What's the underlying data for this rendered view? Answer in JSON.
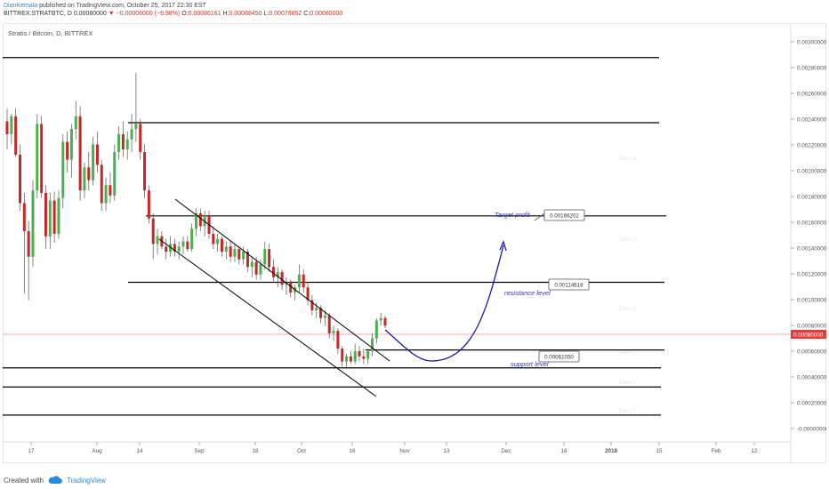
{
  "header": {
    "author": "DianKemala",
    "published": "published on TradingView.com, October 25, 2017 22:30 EST",
    "symbol_line": "BITTREX:STRATBTC, D 0.00080000",
    "change": "▼ −0.00006000 (−6.98%)",
    "o_label": "O:",
    "o_value": "0.00086161",
    "h_label": "H:",
    "h_value": "0.00088450",
    "l_label": "L:",
    "l_value": "0.00078852",
    "c_label": "C:",
    "c_value": "0.00080000"
  },
  "chart_title": "Stratis / Bitcoin, D, BITTREX",
  "footer": {
    "created_with": "Created with",
    "brand": "TradingView"
  },
  "colors": {
    "bull": "#4caf50",
    "bear": "#c62828",
    "wick": "#555555",
    "price_line": "#f28b8b",
    "price_tag": "#e23c3c",
    "projection": "#1a1aa8",
    "annotation_text": "#3333cc",
    "level_line": "#000000",
    "grid": "#eeeeee",
    "zone_label": "#e0e4ea"
  },
  "chart_data": {
    "type": "candlestick",
    "y_ticks": [
      "0.00300000",
      "0.00280000",
      "0.00260000",
      "0.00240000",
      "0.00220000",
      "0.00200000",
      "0.00180000",
      "0.00160000",
      "0.00140000",
      "0.00120000",
      "0.00100000",
      "0.00080000",
      "0.00060000",
      "0.00040000",
      "0.00020000",
      "-0.00000000"
    ],
    "x_ticks": [
      "17",
      "Aug",
      "14",
      "Sep",
      "18",
      "Oct",
      "16",
      "Nov",
      "13",
      "Dec",
      "18",
      "2018",
      "15",
      "Feb",
      "12"
    ],
    "ylim": [
      -0.00011,
      0.00317
    ],
    "last_price": "0.00080000",
    "candles": [
      {
        "o": 0.0024,
        "h": 0.0025,
        "l": 0.00218,
        "c": 0.0023
      },
      {
        "o": 0.0023,
        "h": 0.00246,
        "l": 0.00222,
        "c": 0.00244
      },
      {
        "o": 0.00244,
        "h": 0.0025,
        "l": 0.00212,
        "c": 0.00214
      },
      {
        "o": 0.00214,
        "h": 0.00222,
        "l": 0.0017,
        "c": 0.00176
      },
      {
        "o": 0.00176,
        "h": 0.00184,
        "l": 0.00105,
        "c": 0.00154
      },
      {
        "o": 0.00154,
        "h": 0.00162,
        "l": 0.001,
        "c": 0.00134
      },
      {
        "o": 0.00134,
        "h": 0.00194,
        "l": 0.00126,
        "c": 0.00186
      },
      {
        "o": 0.00186,
        "h": 0.00246,
        "l": 0.0018,
        "c": 0.00238
      },
      {
        "o": 0.00238,
        "h": 0.00244,
        "l": 0.0018,
        "c": 0.00184
      },
      {
        "o": 0.00184,
        "h": 0.0019,
        "l": 0.0014,
        "c": 0.0015
      },
      {
        "o": 0.0015,
        "h": 0.00184,
        "l": 0.0014,
        "c": 0.00178
      },
      {
        "o": 0.00178,
        "h": 0.00185,
        "l": 0.00145,
        "c": 0.00152
      },
      {
        "o": 0.00152,
        "h": 0.00186,
        "l": 0.00148,
        "c": 0.0018
      },
      {
        "o": 0.0018,
        "h": 0.0023,
        "l": 0.00172,
        "c": 0.00224
      },
      {
        "o": 0.00224,
        "h": 0.00232,
        "l": 0.002,
        "c": 0.0021
      },
      {
        "o": 0.0021,
        "h": 0.00238,
        "l": 0.00196,
        "c": 0.00234
      },
      {
        "o": 0.00234,
        "h": 0.00256,
        "l": 0.00226,
        "c": 0.00244
      },
      {
        "o": 0.00244,
        "h": 0.00252,
        "l": 0.00178,
        "c": 0.00186
      },
      {
        "o": 0.00186,
        "h": 0.00208,
        "l": 0.0018,
        "c": 0.00204
      },
      {
        "o": 0.00204,
        "h": 0.00216,
        "l": 0.00186,
        "c": 0.00194
      },
      {
        "o": 0.00194,
        "h": 0.00228,
        "l": 0.0019,
        "c": 0.00222
      },
      {
        "o": 0.00222,
        "h": 0.00232,
        "l": 0.002,
        "c": 0.00206
      },
      {
        "o": 0.00206,
        "h": 0.0021,
        "l": 0.0017,
        "c": 0.00176
      },
      {
        "o": 0.00176,
        "h": 0.00196,
        "l": 0.0017,
        "c": 0.0019
      },
      {
        "o": 0.0019,
        "h": 0.002,
        "l": 0.00176,
        "c": 0.00182
      },
      {
        "o": 0.00182,
        "h": 0.00222,
        "l": 0.00178,
        "c": 0.00216
      },
      {
        "o": 0.00216,
        "h": 0.00236,
        "l": 0.0021,
        "c": 0.0023
      },
      {
        "o": 0.0023,
        "h": 0.0024,
        "l": 0.00212,
        "c": 0.00218
      },
      {
        "o": 0.00218,
        "h": 0.00232,
        "l": 0.0021,
        "c": 0.00226
      },
      {
        "o": 0.00226,
        "h": 0.00246,
        "l": 0.00216,
        "c": 0.00234
      },
      {
        "o": 0.00234,
        "h": 0.00278,
        "l": 0.00224,
        "c": 0.00238
      },
      {
        "o": 0.00238,
        "h": 0.00242,
        "l": 0.0021,
        "c": 0.00216
      },
      {
        "o": 0.00216,
        "h": 0.00222,
        "l": 0.0018,
        "c": 0.00186
      },
      {
        "o": 0.00186,
        "h": 0.0019,
        "l": 0.0016,
        "c": 0.00164
      },
      {
        "o": 0.00164,
        "h": 0.00168,
        "l": 0.00132,
        "c": 0.00144
      },
      {
        "o": 0.00144,
        "h": 0.00156,
        "l": 0.00136,
        "c": 0.0015
      },
      {
        "o": 0.0015,
        "h": 0.00154,
        "l": 0.0014,
        "c": 0.00142
      },
      {
        "o": 0.00142,
        "h": 0.00148,
        "l": 0.00132,
        "c": 0.00138
      },
      {
        "o": 0.00138,
        "h": 0.0015,
        "l": 0.00134,
        "c": 0.00144
      },
      {
        "o": 0.00144,
        "h": 0.00148,
        "l": 0.00134,
        "c": 0.00138
      },
      {
        "o": 0.00138,
        "h": 0.00146,
        "l": 0.00132,
        "c": 0.00142
      },
      {
        "o": 0.00142,
        "h": 0.0015,
        "l": 0.00136,
        "c": 0.00146
      },
      {
        "o": 0.00146,
        "h": 0.0015,
        "l": 0.00138,
        "c": 0.0014
      },
      {
        "o": 0.0014,
        "h": 0.0016,
        "l": 0.00138,
        "c": 0.00156
      },
      {
        "o": 0.00156,
        "h": 0.00172,
        "l": 0.0015,
        "c": 0.00168
      },
      {
        "o": 0.00168,
        "h": 0.00172,
        "l": 0.00154,
        "c": 0.00158
      },
      {
        "o": 0.00158,
        "h": 0.0017,
        "l": 0.0015,
        "c": 0.00166
      },
      {
        "o": 0.00166,
        "h": 0.0017,
        "l": 0.00148,
        "c": 0.00152
      },
      {
        "o": 0.00152,
        "h": 0.00158,
        "l": 0.0014,
        "c": 0.00144
      },
      {
        "o": 0.00144,
        "h": 0.00152,
        "l": 0.00138,
        "c": 0.00148
      },
      {
        "o": 0.00148,
        "h": 0.0015,
        "l": 0.00134,
        "c": 0.00138
      },
      {
        "o": 0.00138,
        "h": 0.00146,
        "l": 0.00132,
        "c": 0.00142
      },
      {
        "o": 0.00142,
        "h": 0.00146,
        "l": 0.0013,
        "c": 0.00134
      },
      {
        "o": 0.00134,
        "h": 0.00144,
        "l": 0.0013,
        "c": 0.0014
      },
      {
        "o": 0.0014,
        "h": 0.00142,
        "l": 0.00128,
        "c": 0.00132
      },
      {
        "o": 0.00132,
        "h": 0.00142,
        "l": 0.00128,
        "c": 0.00138
      },
      {
        "o": 0.00138,
        "h": 0.0014,
        "l": 0.00122,
        "c": 0.00126
      },
      {
        "o": 0.00126,
        "h": 0.00134,
        "l": 0.00118,
        "c": 0.0013
      },
      {
        "o": 0.0013,
        "h": 0.00134,
        "l": 0.00116,
        "c": 0.0012
      },
      {
        "o": 0.0012,
        "h": 0.00132,
        "l": 0.00116,
        "c": 0.00128
      },
      {
        "o": 0.00128,
        "h": 0.00146,
        "l": 0.00124,
        "c": 0.0014
      },
      {
        "o": 0.0014,
        "h": 0.00144,
        "l": 0.00122,
        "c": 0.00126
      },
      {
        "o": 0.00126,
        "h": 0.00132,
        "l": 0.00114,
        "c": 0.00118
      },
      {
        "o": 0.00118,
        "h": 0.00126,
        "l": 0.0011,
        "c": 0.00122
      },
      {
        "o": 0.00122,
        "h": 0.00124,
        "l": 0.00108,
        "c": 0.00112
      },
      {
        "o": 0.00112,
        "h": 0.00118,
        "l": 0.00104,
        "c": 0.00114
      },
      {
        "o": 0.00114,
        "h": 0.00116,
        "l": 0.00102,
        "c": 0.00106
      },
      {
        "o": 0.00106,
        "h": 0.00112,
        "l": 0.001,
        "c": 0.0011
      },
      {
        "o": 0.0011,
        "h": 0.00128,
        "l": 0.00106,
        "c": 0.0012
      },
      {
        "o": 0.0012,
        "h": 0.00124,
        "l": 0.00106,
        "c": 0.0011
      },
      {
        "o": 0.0011,
        "h": 0.00114,
        "l": 0.00096,
        "c": 0.001
      },
      {
        "o": 0.001,
        "h": 0.00104,
        "l": 0.00088,
        "c": 0.00092
      },
      {
        "o": 0.00092,
        "h": 0.00098,
        "l": 0.00086,
        "c": 0.00094
      },
      {
        "o": 0.00094,
        "h": 0.00096,
        "l": 0.00082,
        "c": 0.00086
      },
      {
        "o": 0.00086,
        "h": 0.00092,
        "l": 0.0008,
        "c": 0.00088
      },
      {
        "o": 0.00088,
        "h": 0.0009,
        "l": 0.0007,
        "c": 0.00074
      },
      {
        "o": 0.00074,
        "h": 0.0008,
        "l": 0.00068,
        "c": 0.00076
      },
      {
        "o": 0.00076,
        "h": 0.00078,
        "l": 0.00058,
        "c": 0.00062
      },
      {
        "o": 0.00062,
        "h": 0.00064,
        "l": 0.00048,
        "c": 0.00052
      },
      {
        "o": 0.00052,
        "h": 0.00058,
        "l": 0.00046,
        "c": 0.00056
      },
      {
        "o": 0.00056,
        "h": 0.0006,
        "l": 0.0005,
        "c": 0.00052
      },
      {
        "o": 0.00052,
        "h": 0.00066,
        "l": 0.0005,
        "c": 0.0006
      },
      {
        "o": 0.0006,
        "h": 0.00064,
        "l": 0.00052,
        "c": 0.00056
      },
      {
        "o": 0.00056,
        "h": 0.00062,
        "l": 0.0005,
        "c": 0.00054
      },
      {
        "o": 0.00054,
        "h": 0.00062,
        "l": 0.0005,
        "c": 0.0006
      },
      {
        "o": 0.0006,
        "h": 0.00074,
        "l": 0.00056,
        "c": 0.0007
      },
      {
        "o": 0.0007,
        "h": 0.00086,
        "l": 0.00066,
        "c": 0.00084
      },
      {
        "o": 0.00084,
        "h": 0.0009,
        "l": 0.0008,
        "c": 0.00086
      },
      {
        "o": 0.00086,
        "h": 0.00088,
        "l": 0.00078,
        "c": 0.0008
      }
    ],
    "horizontal_levels": [
      0.0029,
      0.00239,
      0.00166,
      0.00114,
      0.00061,
      0.00047,
      0.00032,
      0.0001
    ],
    "zone_labels": [
      "Zone 4",
      "Zone 3",
      "Zone 6",
      "Zone 1",
      "Zone 2",
      "Zone 1"
    ],
    "annotations": [
      {
        "label": "Target profit",
        "value": "0.00166202"
      },
      {
        "label": "resistance level",
        "value": "0.00114618"
      },
      {
        "label": "support level",
        "value": "0.00061050"
      }
    ]
  }
}
